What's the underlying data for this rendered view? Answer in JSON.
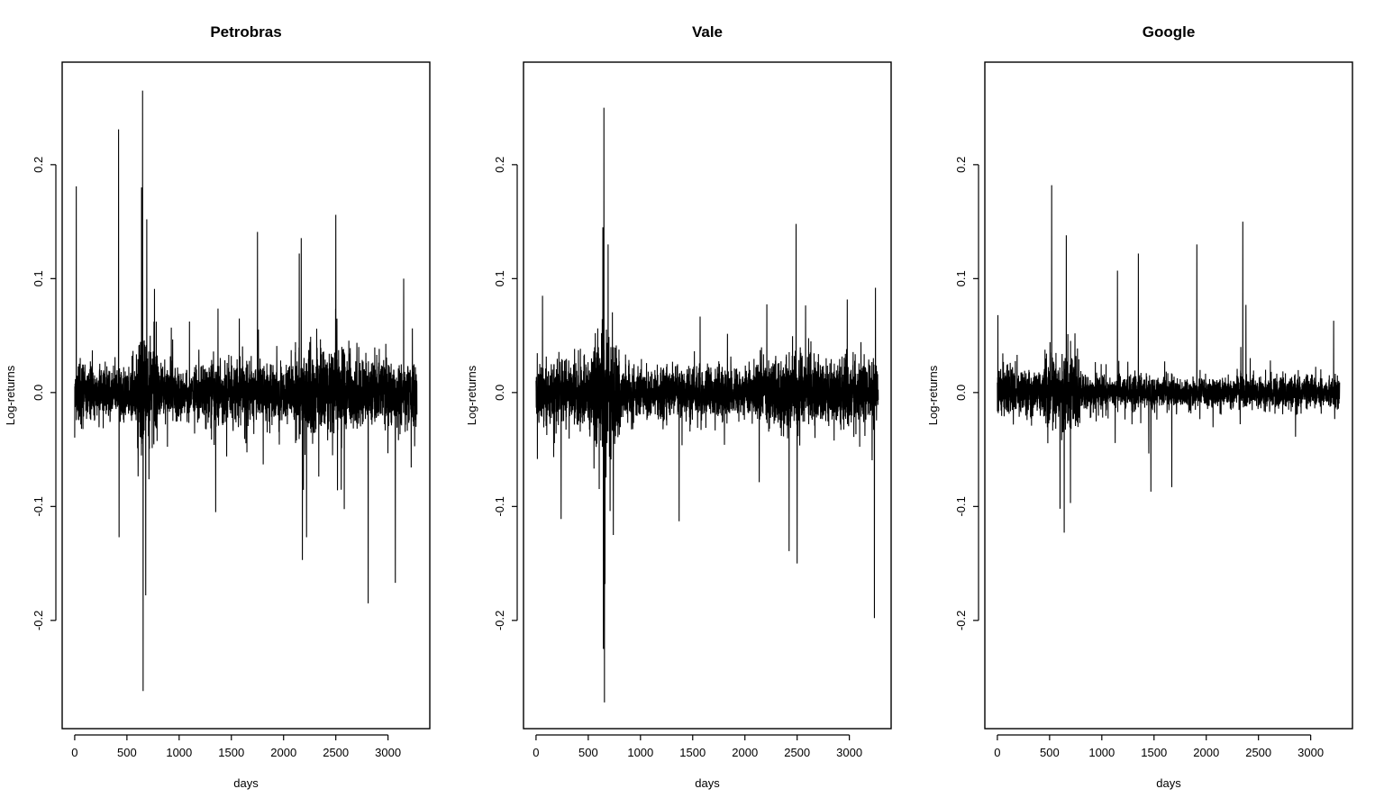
{
  "chart_data": [
    {
      "type": "line",
      "title": "Petrobras",
      "xlabel": "days",
      "ylabel": "Log-returns",
      "xlim": [
        -120,
        3400
      ],
      "ylim": [
        -0.295,
        0.29
      ],
      "xticks": [
        0,
        500,
        1000,
        1500,
        2000,
        2500,
        3000
      ],
      "xtick_labels": [
        "0",
        "500",
        "1000",
        "1500",
        "2000",
        "2500",
        "3000"
      ],
      "yticks": [
        -0.2,
        -0.1,
        0.0,
        0.1,
        0.2
      ],
      "ytick_labels": [
        "-0.2",
        "-0.1",
        "0.0",
        "0.1",
        "0.2"
      ],
      "n_days": 3278,
      "volatility_regimes": [
        {
          "x": [
            0,
            600
          ],
          "sigma": 0.021
        },
        {
          "x": [
            600,
            800
          ],
          "sigma": 0.05
        },
        {
          "x": [
            800,
            1300
          ],
          "sigma": 0.02
        },
        {
          "x": [
            1300,
            2100
          ],
          "sigma": 0.023
        },
        {
          "x": [
            2100,
            2600
          ],
          "sigma": 0.035
        },
        {
          "x": [
            2600,
            3278
          ],
          "sigma": 0.025
        }
      ],
      "spikes": [
        {
          "x": 15,
          "y": 0.181
        },
        {
          "x": 420,
          "y": 0.231
        },
        {
          "x": 425,
          "y": -0.127
        },
        {
          "x": 640,
          "y": 0.18
        },
        {
          "x": 650,
          "y": 0.265
        },
        {
          "x": 655,
          "y": -0.262
        },
        {
          "x": 680,
          "y": -0.178
        },
        {
          "x": 690,
          "y": 0.152
        },
        {
          "x": 1350,
          "y": -0.105
        },
        {
          "x": 1750,
          "y": 0.141
        },
        {
          "x": 2150,
          "y": 0.122
        },
        {
          "x": 2180,
          "y": -0.147
        },
        {
          "x": 2220,
          "y": -0.127
        },
        {
          "x": 2500,
          "y": 0.156
        },
        {
          "x": 2810,
          "y": -0.185
        },
        {
          "x": 3070,
          "y": -0.167
        },
        {
          "x": 3150,
          "y": 0.1
        }
      ]
    },
    {
      "type": "line",
      "title": "Vale",
      "xlabel": "days",
      "ylabel": "Log-returns",
      "xlim": [
        -120,
        3400
      ],
      "ylim": [
        -0.295,
        0.29
      ],
      "xticks": [
        0,
        500,
        1000,
        1500,
        2000,
        2500,
        3000
      ],
      "xtick_labels": [
        "0",
        "500",
        "1000",
        "1500",
        "2000",
        "2500",
        "3000"
      ],
      "yticks": [
        -0.2,
        -0.1,
        0.0,
        0.1,
        0.2
      ],
      "ytick_labels": [
        "-0.2",
        "-0.1",
        "0.0",
        "0.1",
        "0.2"
      ],
      "n_days": 3278,
      "volatility_regimes": [
        {
          "x": [
            0,
            550
          ],
          "sigma": 0.024
        },
        {
          "x": [
            550,
            800
          ],
          "sigma": 0.048
        },
        {
          "x": [
            800,
            2100
          ],
          "sigma": 0.02
        },
        {
          "x": [
            2100,
            2700
          ],
          "sigma": 0.03
        },
        {
          "x": [
            2700,
            3278
          ],
          "sigma": 0.023
        }
      ],
      "spikes": [
        {
          "x": 240,
          "y": -0.111
        },
        {
          "x": 640,
          "y": 0.145
        },
        {
          "x": 645,
          "y": -0.225
        },
        {
          "x": 650,
          "y": 0.25
        },
        {
          "x": 655,
          "y": -0.272
        },
        {
          "x": 660,
          "y": -0.168
        },
        {
          "x": 690,
          "y": 0.13
        },
        {
          "x": 740,
          "y": -0.125
        },
        {
          "x": 1370,
          "y": -0.113
        },
        {
          "x": 2490,
          "y": 0.148
        },
        {
          "x": 2500,
          "y": -0.15
        },
        {
          "x": 3240,
          "y": -0.198
        },
        {
          "x": 3250,
          "y": 0.092
        }
      ]
    },
    {
      "type": "line",
      "title": "Google",
      "xlabel": "days",
      "ylabel": "Log-returns",
      "xlim": [
        -120,
        3400
      ],
      "ylim": [
        -0.295,
        0.29
      ],
      "xticks": [
        0,
        500,
        1000,
        1500,
        2000,
        2500,
        3000
      ],
      "xtick_labels": [
        "0",
        "500",
        "1000",
        "1500",
        "2000",
        "2500",
        "3000"
      ],
      "yticks": [
        -0.2,
        -0.1,
        0.0,
        0.1,
        0.2
      ],
      "ytick_labels": [
        "-0.2",
        "-0.1",
        "0.0",
        "0.1",
        "0.2"
      ],
      "n_days": 3278,
      "volatility_regimes": [
        {
          "x": [
            0,
            450
          ],
          "sigma": 0.018
        },
        {
          "x": [
            450,
            800
          ],
          "sigma": 0.028
        },
        {
          "x": [
            800,
            1700
          ],
          "sigma": 0.013
        },
        {
          "x": [
            1700,
            2300
          ],
          "sigma": 0.011
        },
        {
          "x": [
            2300,
            3278
          ],
          "sigma": 0.013
        }
      ],
      "spikes": [
        {
          "x": 5,
          "y": 0.068
        },
        {
          "x": 520,
          "y": 0.182
        },
        {
          "x": 600,
          "y": -0.102
        },
        {
          "x": 640,
          "y": -0.123
        },
        {
          "x": 660,
          "y": 0.138
        },
        {
          "x": 700,
          "y": -0.097
        },
        {
          "x": 1150,
          "y": 0.107
        },
        {
          "x": 1350,
          "y": 0.122
        },
        {
          "x": 1470,
          "y": -0.087
        },
        {
          "x": 1670,
          "y": -0.083
        },
        {
          "x": 1910,
          "y": 0.13
        },
        {
          "x": 2350,
          "y": 0.15
        },
        {
          "x": 2380,
          "y": 0.077
        },
        {
          "x": 3220,
          "y": 0.063
        }
      ]
    }
  ]
}
